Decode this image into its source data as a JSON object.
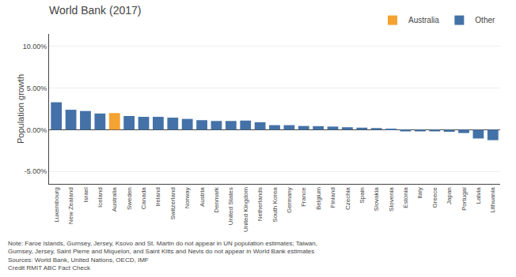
{
  "chart_data": {
    "type": "bar",
    "title": "World Bank (2017)",
    "ylabel": "Population growth",
    "annotations": [
      "Note: Faroe Islands, Gurnsey, Jersey, Ksovo and St. Martin do not appear in UN population estimates; Taiwan,",
      "Gurnsey, Jersey, Saint Pierre and Miquelon, and Saint Kitts and Nevis do not appear in World Bank estimates",
      "Sources: World Bank, United Nations, OECD, IMF",
      "Credit RMIT ABC Fact Check"
    ],
    "categories": [
      "Luxembourg",
      "New Zealand",
      "Israel",
      "Iceland",
      "Australia",
      "Sweden",
      "Canada",
      "Ireland",
      "Switzerland",
      "Norway",
      "Austria",
      "Denmark",
      "United States",
      "United Kingdom",
      "Netherlands",
      "South Korea",
      "Germany",
      "France",
      "Belgium",
      "Finland",
      "Czechia",
      "Spain",
      "Slovakia",
      "Slovenia",
      "Estonia",
      "Italy",
      "Greece",
      "Japan",
      "Portugal",
      "Latvia",
      "Lithuania"
    ],
    "series": [
      {
        "name": "Australia",
        "color": "#f4a230",
        "values": [
          null,
          null,
          null,
          null,
          0.02,
          null,
          null,
          null,
          null,
          null,
          null,
          null,
          null,
          null,
          null,
          null,
          null,
          null,
          null,
          null,
          null,
          null,
          null,
          null,
          null,
          null,
          null,
          null,
          null,
          null,
          null
        ]
      },
      {
        "name": "Other",
        "color": "#4472a8",
        "values": [
          0.033,
          0.024,
          0.0225,
          0.0195,
          null,
          0.0165,
          0.0155,
          0.0155,
          0.0145,
          0.013,
          0.0115,
          0.0105,
          0.0105,
          0.011,
          0.009,
          0.0055,
          0.0055,
          0.0045,
          0.0043,
          0.0038,
          0.003,
          0.0025,
          0.002,
          0.001,
          -0.002,
          -0.002,
          -0.002,
          -0.0025,
          -0.004,
          -0.0105,
          -0.0125
        ]
      }
    ],
    "ylim": [
      -0.065,
      0.115
    ],
    "yticks": [
      {
        "value": -0.05,
        "label": "-5.00%"
      },
      {
        "value": 0,
        "label": "0.00%"
      },
      {
        "value": 0.05,
        "label": "5.00%"
      },
      {
        "value": 0.1,
        "label": "10.00%"
      }
    ],
    "grid": true,
    "legend": "upper right"
  }
}
